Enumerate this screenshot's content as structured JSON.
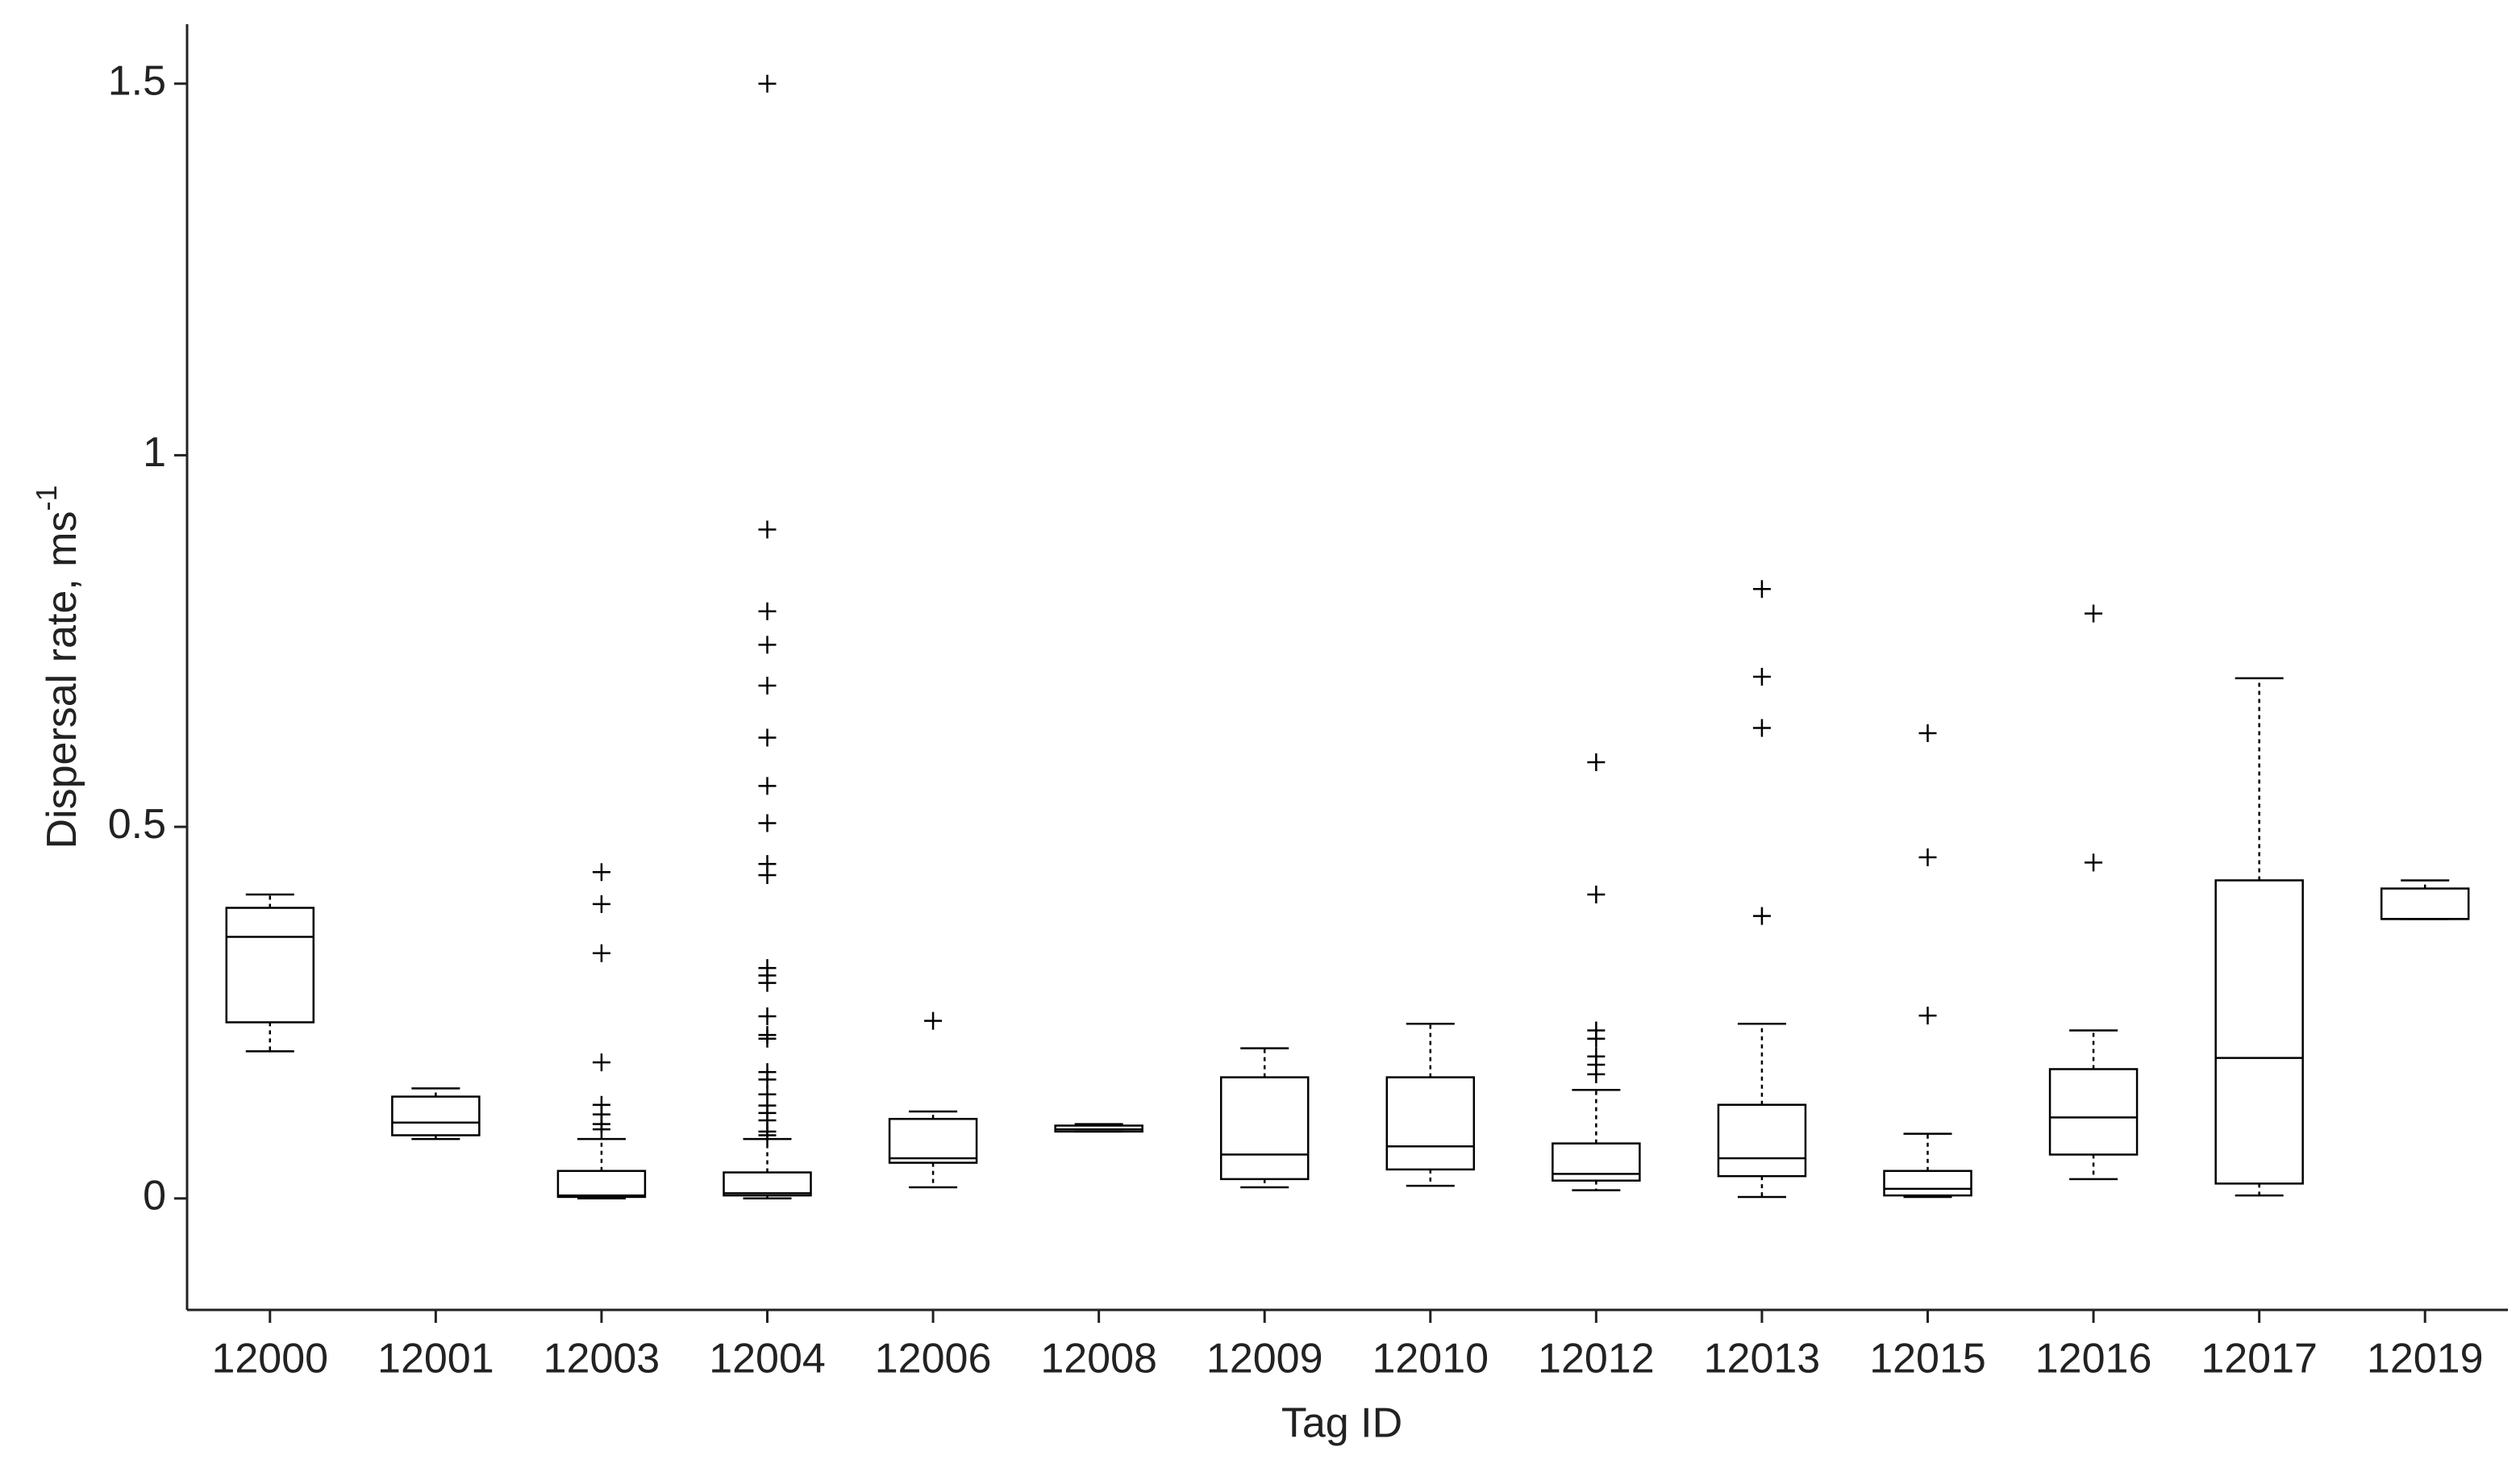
{
  "chart_data": {
    "type": "box",
    "x_label": "Tag ID",
    "y_label": "Dispersal rate, ms",
    "y_label_superscript": "-1",
    "categories": [
      "12000",
      "12001",
      "12003",
      "12004",
      "12006",
      "12008",
      "12009",
      "12010",
      "12012",
      "12013",
      "12015",
      "12016",
      "12017",
      "12019"
    ],
    "color": "#000000",
    "ylim": [
      -0.15,
      1.58
    ],
    "yticks": [
      0,
      0.5,
      1,
      1.5
    ],
    "grid": false,
    "boxes": [
      {
        "whislo": 0.198,
        "q1": 0.237,
        "med": 0.352,
        "q3": 0.391,
        "whishi": 0.409,
        "fliers": []
      },
      {
        "whislo": 0.08,
        "q1": 0.085,
        "med": 0.102,
        "q3": 0.137,
        "whishi": 0.148,
        "fliers": []
      },
      {
        "whislo": 0,
        "q1": 0.002,
        "med": 0.004,
        "q3": 0.037,
        "whishi": 0.08,
        "fliers": [
          0.439,
          0.396,
          0.33,
          0.183,
          0.126,
          0.113,
          0.1,
          0.093
        ]
      },
      {
        "whislo": 0,
        "q1": 0.004,
        "med": 0.007,
        "q3": 0.035,
        "whishi": 0.08,
        "fliers": [
          1.5,
          0.9,
          0.79,
          0.745,
          0.69,
          0.62,
          0.555,
          0.505,
          0.45,
          0.435,
          0.31,
          0.3,
          0.29,
          0.245,
          0.22,
          0.215,
          0.17,
          0.16,
          0.14,
          0.125,
          0.115,
          0.105,
          0.09,
          0.085
        ]
      },
      {
        "whislo": 0.015,
        "q1": 0.048,
        "med": 0.054,
        "q3": 0.107,
        "whishi": 0.117,
        "fliers": [
          0.239
        ]
      },
      {
        "whislo": 0.09,
        "q1": 0.09,
        "med": 0.093,
        "q3": 0.098,
        "whishi": 0.1,
        "fliers": []
      },
      {
        "whislo": 0.015,
        "q1": 0.026,
        "med": 0.059,
        "q3": 0.163,
        "whishi": 0.202,
        "fliers": []
      },
      {
        "whislo": 0.017,
        "q1": 0.039,
        "med": 0.07,
        "q3": 0.163,
        "whishi": 0.235,
        "fliers": []
      },
      {
        "whislo": 0.011,
        "q1": 0.024,
        "med": 0.033,
        "q3": 0.074,
        "whishi": 0.146,
        "fliers": [
          0.587,
          0.409,
          0.226,
          0.215,
          0.191,
          0.18,
          0.167
        ]
      },
      {
        "whislo": 0.002,
        "q1": 0.03,
        "med": 0.054,
        "q3": 0.126,
        "whishi": 0.235,
        "fliers": [
          0.82,
          0.702,
          0.633,
          0.38
        ]
      },
      {
        "whislo": 0.002,
        "q1": 0.004,
        "med": 0.013,
        "q3": 0.037,
        "whishi": 0.087,
        "fliers": [
          0.626,
          0.459,
          0.246
        ]
      },
      {
        "whislo": 0.026,
        "q1": 0.059,
        "med": 0.109,
        "q3": 0.174,
        "whishi": 0.226,
        "fliers": [
          0.787,
          0.452
        ]
      },
      {
        "whislo": 0.004,
        "q1": 0.02,
        "med": 0.189,
        "q3": 0.428,
        "whishi": 0.7,
        "fliers": []
      },
      {
        "whislo": 0.376,
        "q1": 0.376,
        "med": 0.376,
        "q3": 0.417,
        "whishi": 0.428,
        "fliers": []
      }
    ]
  }
}
